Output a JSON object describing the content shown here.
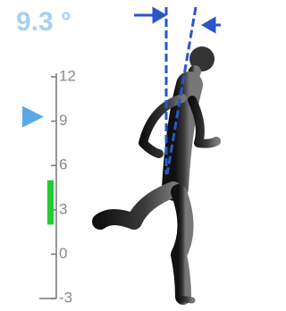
{
  "readout": "9.3 °",
  "gauge": {
    "range": [
      -3,
      12
    ],
    "ticks": [
      -3,
      0,
      3,
      6,
      9,
      12
    ],
    "pointer": 9.3,
    "band": [
      2,
      5
    ],
    "pointer_color": "#5aa9e6",
    "band_color": "#22cc33"
  }
}
